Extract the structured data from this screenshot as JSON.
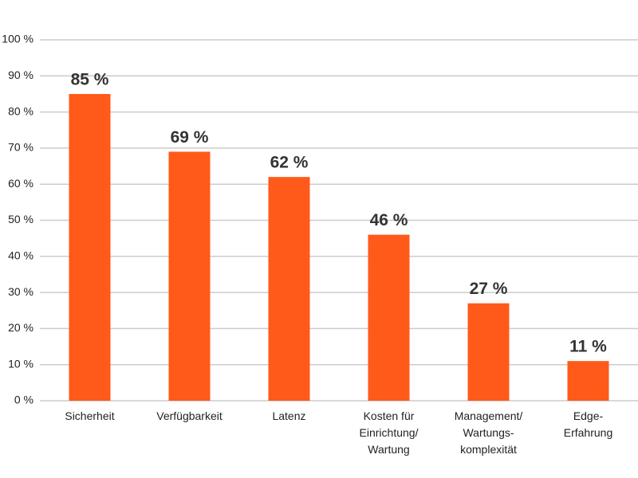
{
  "chart_data": {
    "type": "bar",
    "categories": [
      "Sicherheit",
      "Verfügbarkeit",
      "Latenz",
      "Kosten für\nEinrichtung/\nWartung",
      "Management/\nWartungs-\nkomplexität",
      "Edge-\nErfahrung"
    ],
    "values": [
      85,
      69,
      62,
      46,
      27,
      11
    ],
    "value_labels": [
      "85 %",
      "69 %",
      "62 %",
      "46 %",
      "27 %",
      "11 %"
    ],
    "color": "#ff5a1a",
    "ylim": [
      0,
      100
    ],
    "yticks": [
      {
        "value": 0,
        "label": "0 %"
      },
      {
        "value": 10,
        "label": "10 %"
      },
      {
        "value": 20,
        "label": "20 %"
      },
      {
        "value": 30,
        "label": "30 %"
      },
      {
        "value": 40,
        "label": "40 %"
      },
      {
        "value": 50,
        "label": "50 %"
      },
      {
        "value": 60,
        "label": "60 %"
      },
      {
        "value": 70,
        "label": "70 %"
      },
      {
        "value": 80,
        "label": "80 %"
      },
      {
        "value": 90,
        "label": "90 %"
      },
      {
        "value": 100,
        "label": "100 %"
      }
    ],
    "grid": true
  }
}
